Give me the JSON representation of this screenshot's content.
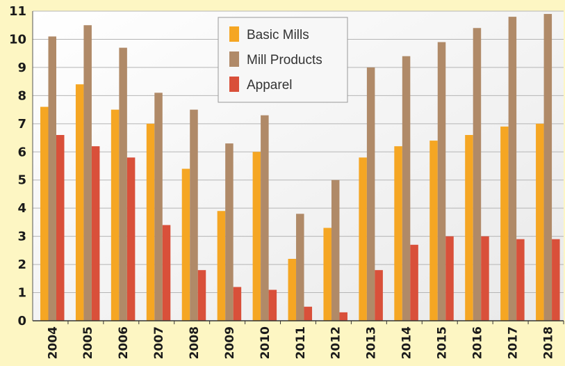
{
  "chart_data": {
    "type": "bar",
    "categories": [
      "2004",
      "2005",
      "2006",
      "2007",
      "2008",
      "2009",
      "2010",
      "2011",
      "2012",
      "2013",
      "2014",
      "2015",
      "2016",
      "2017",
      "2018"
    ],
    "series": [
      {
        "name": "Basic Mills",
        "color": "#f5a623",
        "values": [
          7.6,
          8.4,
          7.5,
          7.0,
          5.4,
          3.9,
          6.0,
          2.2,
          3.3,
          5.8,
          6.2,
          6.4,
          6.6,
          6.9,
          7.0
        ]
      },
      {
        "name": "Mill Products",
        "color": "#b08a68",
        "values": [
          10.1,
          10.5,
          9.7,
          8.1,
          7.5,
          6.3,
          7.3,
          3.8,
          5.0,
          9.0,
          9.4,
          9.9,
          10.4,
          10.8,
          10.9
        ]
      },
      {
        "name": "Apparel",
        "color": "#d9503a",
        "values": [
          6.6,
          6.2,
          5.8,
          3.4,
          1.8,
          1.2,
          1.1,
          0.5,
          0.3,
          1.8,
          2.7,
          3.0,
          3.0,
          2.9,
          2.9
        ]
      }
    ],
    "yticks": [
      "0",
      "1",
      "2",
      "3",
      "4",
      "5",
      "6",
      "7",
      "8",
      "9",
      "10",
      "11"
    ],
    "ylim": [
      0,
      11
    ],
    "grid": true,
    "legend_position": "top-center",
    "title": "",
    "xlabel": "",
    "ylabel": ""
  }
}
